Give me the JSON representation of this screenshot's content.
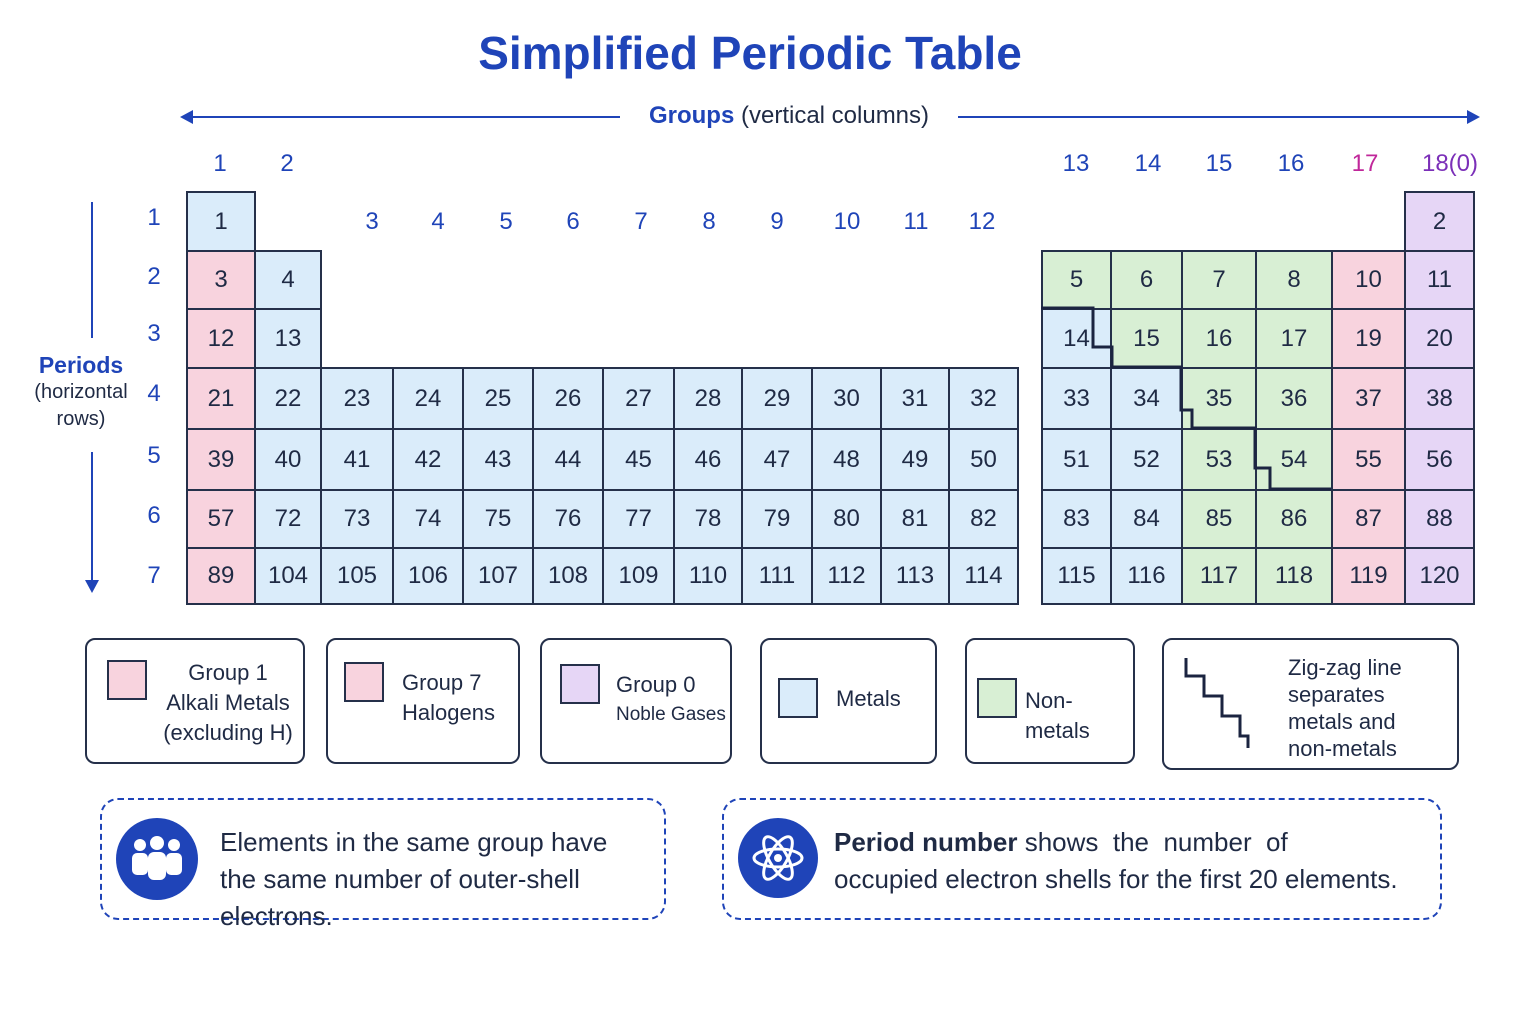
{
  "title": "Simplified Periodic Table",
  "groups_axis": {
    "label_strong": "Groups",
    "label_rest": "(vertical columns)"
  },
  "periods_axis": {
    "label_strong": "Periods",
    "label_line2": "(horizontal",
    "label_line3": "rows)"
  },
  "group_headers": {
    "g1": "1",
    "g2": "2",
    "g3": "3",
    "g4": "4",
    "g5": "5",
    "g6": "6",
    "g7": "7",
    "g8": "8",
    "g9": "9",
    "g10": "10",
    "g11": "11",
    "g12": "12",
    "g13": "13",
    "g14": "14",
    "g15": "15",
    "g16": "16",
    "g17": "17",
    "g18": "18(0)"
  },
  "period_numbers": [
    "1",
    "2",
    "3",
    "4",
    "5",
    "6",
    "7"
  ],
  "cells": [
    {
      "n": "1",
      "cat": "metal"
    },
    {
      "n": "2",
      "cat": "noble"
    },
    {
      "n": "3",
      "cat": "alkali"
    },
    {
      "n": "4",
      "cat": "metal"
    },
    {
      "n": "5",
      "cat": "nonmetal"
    },
    {
      "n": "6",
      "cat": "nonmetal"
    },
    {
      "n": "7",
      "cat": "nonmetal"
    },
    {
      "n": "8",
      "cat": "nonmetal"
    },
    {
      "n": "10",
      "cat": "halogen"
    },
    {
      "n": "11",
      "cat": "noble"
    },
    {
      "n": "12",
      "cat": "alkali"
    },
    {
      "n": "13",
      "cat": "metal"
    },
    {
      "n": "14",
      "cat": "metal"
    },
    {
      "n": "15",
      "cat": "nonmetal"
    },
    {
      "n": "16",
      "cat": "nonmetal"
    },
    {
      "n": "17",
      "cat": "nonmetal"
    },
    {
      "n": "19",
      "cat": "halogen"
    },
    {
      "n": "20",
      "cat": "noble"
    },
    {
      "n": "21",
      "cat": "alkali"
    },
    {
      "n": "22",
      "cat": "metal"
    },
    {
      "n": "23",
      "cat": "metal"
    },
    {
      "n": "24",
      "cat": "metal"
    },
    {
      "n": "25",
      "cat": "metal"
    },
    {
      "n": "26",
      "cat": "metal"
    },
    {
      "n": "27",
      "cat": "metal"
    },
    {
      "n": "28",
      "cat": "metal"
    },
    {
      "n": "29",
      "cat": "metal"
    },
    {
      "n": "30",
      "cat": "metal"
    },
    {
      "n": "31",
      "cat": "metal"
    },
    {
      "n": "32",
      "cat": "metal"
    },
    {
      "n": "33",
      "cat": "metal"
    },
    {
      "n": "34",
      "cat": "metal"
    },
    {
      "n": "35",
      "cat": "nonmetal"
    },
    {
      "n": "36",
      "cat": "nonmetal"
    },
    {
      "n": "37",
      "cat": "halogen"
    },
    {
      "n": "38",
      "cat": "noble"
    },
    {
      "n": "39",
      "cat": "alkali"
    },
    {
      "n": "40",
      "cat": "metal"
    },
    {
      "n": "41",
      "cat": "metal"
    },
    {
      "n": "42",
      "cat": "metal"
    },
    {
      "n": "43",
      "cat": "metal"
    },
    {
      "n": "44",
      "cat": "metal"
    },
    {
      "n": "45",
      "cat": "metal"
    },
    {
      "n": "46",
      "cat": "metal"
    },
    {
      "n": "47",
      "cat": "metal"
    },
    {
      "n": "48",
      "cat": "metal"
    },
    {
      "n": "49",
      "cat": "metal"
    },
    {
      "n": "50",
      "cat": "metal"
    },
    {
      "n": "51",
      "cat": "metal"
    },
    {
      "n": "52",
      "cat": "metal"
    },
    {
      "n": "53",
      "cat": "nonmetal"
    },
    {
      "n": "54",
      "cat": "nonmetal"
    },
    {
      "n": "55",
      "cat": "halogen"
    },
    {
      "n": "56",
      "cat": "noble"
    },
    {
      "n": "57",
      "cat": "alkali"
    },
    {
      "n": "72",
      "cat": "metal"
    },
    {
      "n": "73",
      "cat": "metal"
    },
    {
      "n": "74",
      "cat": "metal"
    },
    {
      "n": "75",
      "cat": "metal"
    },
    {
      "n": "76",
      "cat": "metal"
    },
    {
      "n": "77",
      "cat": "metal"
    },
    {
      "n": "78",
      "cat": "metal"
    },
    {
      "n": "79",
      "cat": "metal"
    },
    {
      "n": "80",
      "cat": "metal"
    },
    {
      "n": "81",
      "cat": "metal"
    },
    {
      "n": "82",
      "cat": "metal"
    },
    {
      "n": "83",
      "cat": "metal"
    },
    {
      "n": "84",
      "cat": "metal"
    },
    {
      "n": "85",
      "cat": "nonmetal"
    },
    {
      "n": "86",
      "cat": "nonmetal"
    },
    {
      "n": "87",
      "cat": "halogen"
    },
    {
      "n": "88",
      "cat": "noble"
    },
    {
      "n": "89",
      "cat": "alkali"
    },
    {
      "n": "104",
      "cat": "metal"
    },
    {
      "n": "105",
      "cat": "metal"
    },
    {
      "n": "106",
      "cat": "metal"
    },
    {
      "n": "107",
      "cat": "metal"
    },
    {
      "n": "108",
      "cat": "metal"
    },
    {
      "n": "109",
      "cat": "metal"
    },
    {
      "n": "110",
      "cat": "metal"
    },
    {
      "n": "111",
      "cat": "metal"
    },
    {
      "n": "112",
      "cat": "metal"
    },
    {
      "n": "113",
      "cat": "metal"
    },
    {
      "n": "114",
      "cat": "metal"
    },
    {
      "n": "115",
      "cat": "metal"
    },
    {
      "n": "116",
      "cat": "metal"
    },
    {
      "n": "117",
      "cat": "nonmetal"
    },
    {
      "n": "118",
      "cat": "nonmetal"
    },
    {
      "n": "119",
      "cat": "halogen"
    },
    {
      "n": "120",
      "cat": "noble"
    }
  ],
  "legend": {
    "alkali": {
      "line1": "Group 1",
      "line2": "Alkali Metals",
      "line3": "(excluding H)"
    },
    "halogen": {
      "line1": "Group 7",
      "line2": "Halogens"
    },
    "noble": {
      "line1": "Group 0",
      "line2": "Noble Gases"
    },
    "metal": {
      "line1": "Metals"
    },
    "nonmetal": {
      "line1": "Non-metals"
    },
    "zigzag": {
      "line1": "Zig-zag line",
      "line2": "separates",
      "line3": "metals and",
      "line4": "non-metals"
    }
  },
  "info": {
    "groups": {
      "line1": "Elements in the same group have",
      "line2": "the same number of outer-shell electrons.",
      "icon": "people-group-icon"
    },
    "periods": {
      "strong": "Period number",
      "line1_rest": " shows  the  number  of",
      "line2": "occupied electron shells for the first 20 elements.",
      "icon": "atom-icon"
    }
  },
  "colors": {
    "accent": "#1f44b8",
    "alkali": "#f8d3de",
    "halogen": "#f8d3de",
    "noble": "#e6d6f6",
    "metal": "#daecfa",
    "nonmetal": "#d8efd4",
    "group17_header": "#c0279a",
    "group18_header": "#7b2fb8"
  }
}
